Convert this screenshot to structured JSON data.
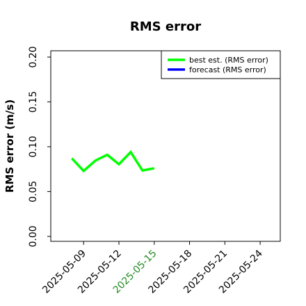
{
  "chart_data": {
    "type": "line",
    "title": "RMS error",
    "ylabel": "RMS error (m/s)",
    "x": [
      "2025-05-08",
      "2025-05-09",
      "2025-05-10",
      "2025-05-11",
      "2025-05-12",
      "2025-05-13",
      "2025-05-14",
      "2025-05-15"
    ],
    "series": [
      {
        "name": "best est. (RMS error)",
        "color": "#00ff00",
        "values": [
          0.087,
          0.073,
          0.0845,
          0.091,
          0.0805,
          0.094,
          0.0735,
          0.076
        ]
      },
      {
        "name": "forecast (RMS error)",
        "color": "#0000ff",
        "values": [
          null,
          null,
          null,
          null,
          null,
          null,
          null,
          null
        ]
      }
    ],
    "xlim": [
      "2025-05-06T05:00",
      "2025-05-25T17:00"
    ],
    "xticks": [
      "2025-05-09",
      "2025-05-12",
      "2025-05-15",
      "2025-05-18",
      "2025-05-21",
      "2025-05-24"
    ],
    "highlight_xtick": {
      "value": "2025-05-15",
      "color": "#228b22"
    },
    "ylim": [
      -0.0055,
      0.207
    ],
    "yticks": [
      {
        "value": 0,
        "label": "0.00"
      },
      {
        "value": 0.05,
        "label": "0.05"
      },
      {
        "value": 0.1,
        "label": "0.10"
      },
      {
        "value": 0.15,
        "label": "0.15"
      },
      {
        "value": 0.2,
        "label": "0.20"
      }
    ],
    "legend": "upper right",
    "grid": false
  }
}
